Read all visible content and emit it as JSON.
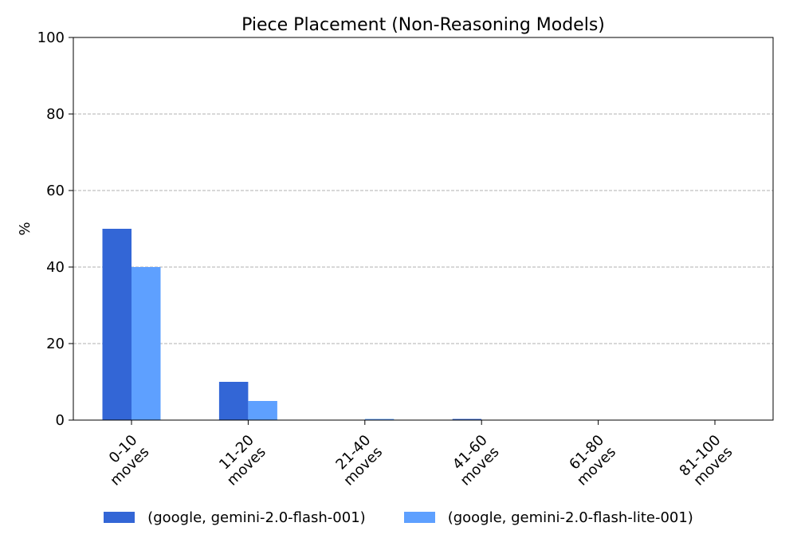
{
  "chart_data": {
    "type": "bar",
    "title": "Piece Placement (Non-Reasoning Models)",
    "xlabel": "",
    "ylabel": "%",
    "ylim": [
      0,
      100
    ],
    "yticks": [
      "0",
      "20",
      "40",
      "60",
      "80",
      "100"
    ],
    "categories": [
      "0-10\nmoves",
      "11-20\nmoves",
      "21-40\nmoves",
      "41-60\nmoves",
      "61-80\nmoves",
      "81-100\nmoves"
    ],
    "series": [
      {
        "name": "(google, gemini-2.0-flash-001)",
        "color": "#3366d6",
        "values": [
          50,
          10,
          0,
          0.3,
          0,
          0
        ]
      },
      {
        "name": "(google, gemini-2.0-flash-lite-001)",
        "color": "#5ea0ff",
        "values": [
          40,
          5,
          0.3,
          0,
          0,
          0
        ]
      }
    ],
    "grid": "y-dashed",
    "legend_position": "bottom-center"
  }
}
